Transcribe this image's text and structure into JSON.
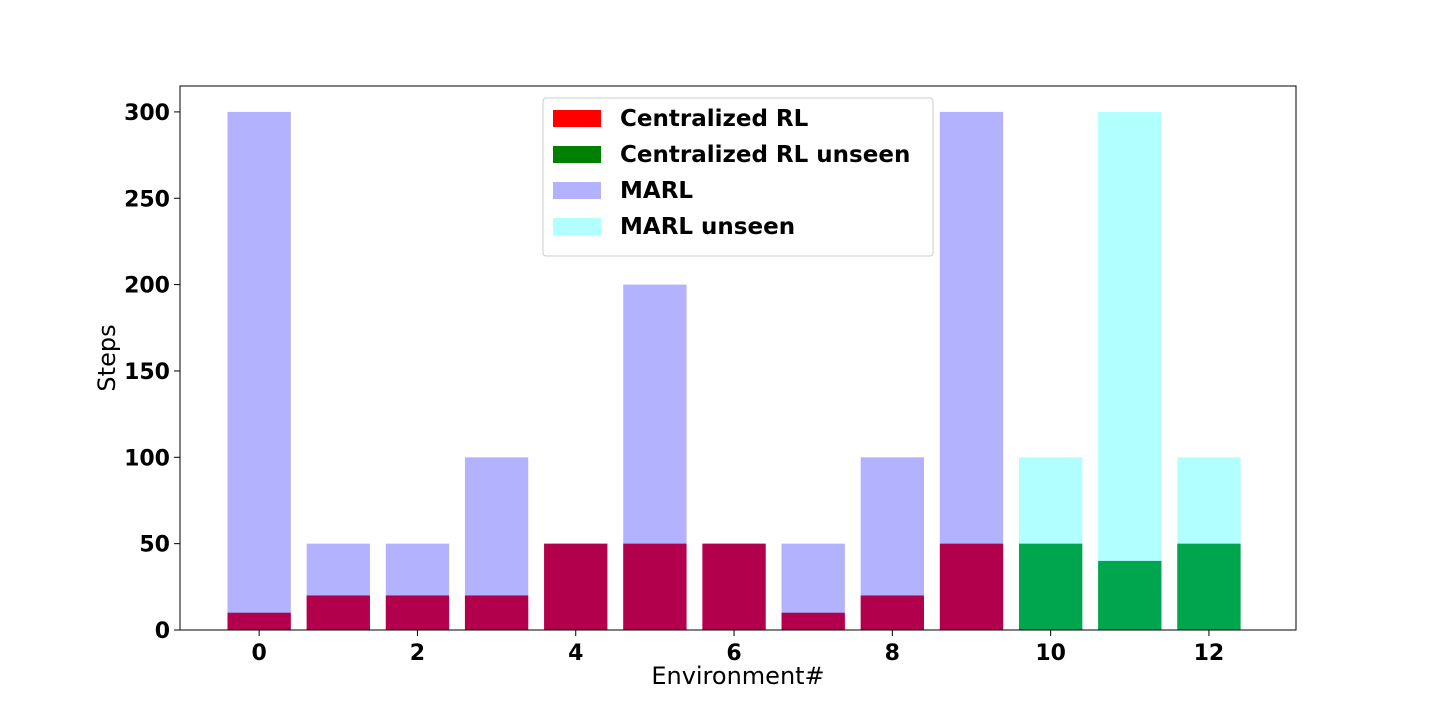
{
  "chart_data": {
    "type": "bar",
    "xlabel": "Environment#",
    "ylabel": "Steps",
    "xlim": [
      -1,
      13.1
    ],
    "ylim": [
      0,
      315
    ],
    "x_ticks": [
      0,
      2,
      4,
      6,
      8,
      10,
      12
    ],
    "y_ticks": [
      0,
      50,
      100,
      150,
      200,
      250,
      300
    ],
    "x_tick_labels": [
      "0",
      "2",
      "4",
      "6",
      "8",
      "10",
      "12"
    ],
    "y_tick_labels": [
      "0",
      "50",
      "100",
      "150",
      "200",
      "250",
      "300"
    ],
    "grid": false,
    "legend_position": "top-center",
    "series": [
      {
        "name": "Centralized RL",
        "color": "#ff0000",
        "alpha": 1.0,
        "x": [
          0,
          1,
          2,
          3,
          4,
          5,
          6,
          7,
          8,
          9
        ],
        "values": [
          10,
          20,
          20,
          20,
          50,
          50,
          50,
          10,
          20,
          50
        ]
      },
      {
        "name": "Centralized RL unseen",
        "color": "#008000",
        "alpha": 1.0,
        "x": [
          10,
          11,
          12
        ],
        "values": [
          50,
          40,
          50
        ]
      },
      {
        "name": "MARL",
        "color": "#0000ff",
        "alpha": 0.3,
        "x": [
          0,
          1,
          2,
          3,
          4,
          5,
          6,
          7,
          8,
          9
        ],
        "values": [
          300,
          50,
          50,
          100,
          50,
          200,
          50,
          50,
          100,
          300
        ]
      },
      {
        "name": "MARL unseen",
        "color": "#00ffff",
        "alpha": 0.3,
        "x": [
          10,
          11,
          12
        ],
        "values": [
          100,
          300,
          100
        ]
      }
    ]
  }
}
